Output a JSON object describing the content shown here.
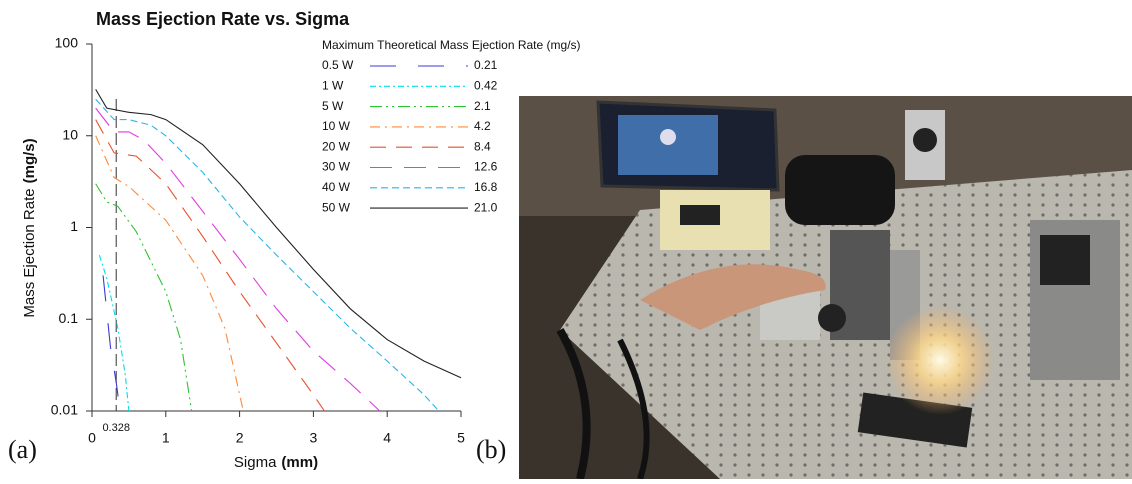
{
  "chart_data": {
    "type": "line",
    "title": "Mass Ejection Rate vs. Sigma",
    "xlabel": "Sigma",
    "xlabel_unit": "(mm)",
    "ylabel": "Mass Ejection Rate",
    "ylabel_unit": "(mg/s)",
    "legend_title": "Maximum Theoretical Mass Ejection Rate (mg/s)",
    "xlim": [
      0,
      5
    ],
    "xticks": [
      0,
      1,
      2,
      3,
      4,
      5
    ],
    "ylim": [
      0.01,
      100
    ],
    "yticks": [
      0.01,
      0.1,
      1,
      10,
      100
    ],
    "ylog": true,
    "vline": {
      "value": 0.328,
      "label": "0.328"
    },
    "series": [
      {
        "name": "0.5 W",
        "color": "#3a3ad6",
        "max_rate": 0.21,
        "x": [
          0.15,
          0.25,
          0.33,
          0.38
        ],
        "values": [
          0.3,
          0.05,
          0.02,
          0.01
        ]
      },
      {
        "name": "1 W",
        "color": "#00e0e8",
        "max_rate": 0.42,
        "x": [
          0.1,
          0.2,
          0.35,
          0.45,
          0.5
        ],
        "values": [
          0.5,
          0.28,
          0.08,
          0.025,
          0.01
        ]
      },
      {
        "name": "5 W",
        "color": "#2ec42e",
        "max_rate": 2.1,
        "x": [
          0.05,
          0.2,
          0.35,
          0.6,
          1.0,
          1.2,
          1.35
        ],
        "values": [
          3,
          1.9,
          1.7,
          0.9,
          0.2,
          0.06,
          0.01
        ]
      },
      {
        "name": "10 W",
        "color": "#ff8a3a",
        "max_rate": 4.2,
        "x": [
          0.05,
          0.3,
          0.5,
          1.0,
          1.5,
          1.8,
          2.05
        ],
        "values": [
          10,
          3.5,
          2.8,
          1.2,
          0.3,
          0.08,
          0.01
        ]
      },
      {
        "name": "20 W",
        "color": "#e8502e",
        "max_rate": 8.4,
        "x": [
          0.05,
          0.3,
          0.6,
          1.0,
          1.5,
          2.0,
          2.5,
          3.0,
          3.15
        ],
        "values": [
          15,
          6.5,
          6,
          3,
          0.8,
          0.2,
          0.055,
          0.015,
          0.01
        ]
      },
      {
        "name": "30 W",
        "color": "#e23ae2",
        "max_rate": 12.6,
        "x": [
          0.05,
          0.3,
          0.5,
          0.7,
          1.0,
          1.5,
          2.0,
          2.5,
          3.0,
          3.5,
          3.9
        ],
        "values": [
          20,
          11,
          11,
          9,
          5,
          1.5,
          0.45,
          0.13,
          0.045,
          0.02,
          0.01
        ]
      },
      {
        "name": "40 W",
        "color": "#2ab4ec",
        "max_rate": 16.8,
        "x": [
          0.05,
          0.3,
          0.5,
          0.8,
          1.0,
          1.5,
          2.0,
          2.5,
          3.0,
          3.5,
          4.0,
          4.5,
          4.7
        ],
        "values": [
          25,
          15,
          15,
          13,
          10,
          4,
          1.3,
          0.5,
          0.2,
          0.08,
          0.035,
          0.015,
          0.01
        ]
      },
      {
        "name": "50 W",
        "color": "#222222",
        "max_rate": 21.0,
        "max_rate_label": "21.0",
        "x": [
          0.05,
          0.2,
          0.5,
          0.8,
          1.0,
          1.5,
          2.0,
          2.5,
          3.0,
          3.5,
          4.0,
          4.5,
          5.0
        ],
        "values": [
          32,
          20,
          18,
          17,
          15,
          8,
          3,
          1.0,
          0.35,
          0.13,
          0.06,
          0.035,
          0.023
        ]
      }
    ]
  },
  "panel_labels": [
    "(a)",
    "(b)"
  ]
}
